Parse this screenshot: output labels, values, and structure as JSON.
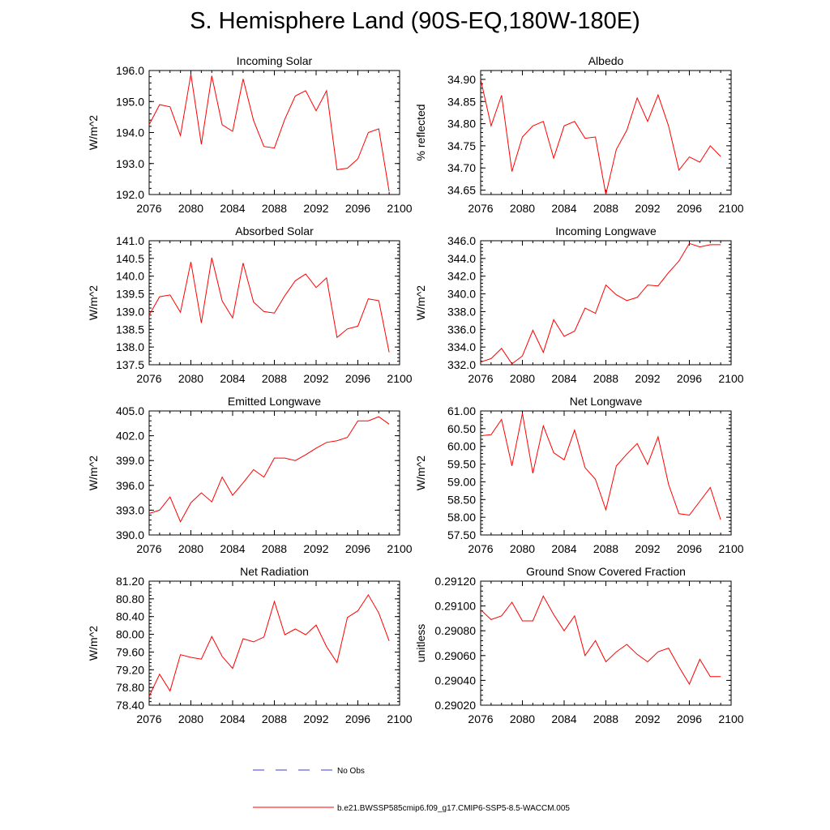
{
  "figure": {
    "title": "S. Hemisphere Land (90S-EQ,180W-180E)",
    "legend": [
      {
        "label": "No Obs",
        "color": "#3b3bd9",
        "style": "dashed"
      },
      {
        "label": "b.e21.BWSSP585cmip6.f09_g17.CMIP6-SSP5-8.5-WACCM.005",
        "color": "#ff0000",
        "style": "solid"
      }
    ],
    "colors": {
      "series": "#ff0000",
      "axis": "#000000",
      "obs": "#3b3bd9"
    }
  },
  "chart_data": [
    {
      "type": "line",
      "title": "Incoming Solar",
      "xlabel": "",
      "ylabel": "W/m^2",
      "xlim": [
        2076,
        2100
      ],
      "xticks": [
        2076,
        2080,
        2084,
        2088,
        2092,
        2096,
        2100
      ],
      "ylim": [
        192.0,
        196.0
      ],
      "yticks": [
        "192.0",
        "193.0",
        "194.0",
        "195.0",
        "196.0"
      ],
      "yminor": 0.2,
      "x": [
        2076,
        2077,
        2078,
        2079,
        2080,
        2081,
        2082,
        2083,
        2084,
        2085,
        2086,
        2087,
        2088,
        2089,
        2090,
        2091,
        2092,
        2093,
        2094,
        2095,
        2096,
        2097,
        2098,
        2099
      ],
      "values": [
        194.25,
        194.9,
        194.83,
        193.9,
        195.88,
        193.62,
        195.83,
        194.25,
        194.04,
        195.73,
        194.39,
        193.55,
        193.5,
        194.43,
        195.18,
        195.35,
        194.7,
        195.35,
        192.8,
        192.85,
        193.15,
        194.0,
        194.12,
        192.1
      ]
    },
    {
      "type": "line",
      "title": "Albedo",
      "xlabel": "",
      "ylabel": "% reflected",
      "xlim": [
        2076,
        2100
      ],
      "xticks": [
        2076,
        2080,
        2084,
        2088,
        2092,
        2096,
        2100
      ],
      "ylim": [
        34.64,
        34.92
      ],
      "yticks": [
        "34.65",
        "34.70",
        "34.75",
        "34.80",
        "34.85",
        "34.90"
      ],
      "yminor": 0.01,
      "x": [
        2076,
        2077,
        2078,
        2079,
        2080,
        2081,
        2082,
        2083,
        2084,
        2085,
        2086,
        2087,
        2088,
        2089,
        2090,
        2091,
        2092,
        2093,
        2094,
        2095,
        2096,
        2097,
        2098,
        2099
      ],
      "values": [
        34.9,
        34.795,
        34.864,
        34.692,
        34.77,
        34.795,
        34.805,
        34.722,
        34.795,
        34.805,
        34.767,
        34.77,
        34.64,
        34.742,
        34.785,
        34.858,
        34.805,
        34.865,
        34.795,
        34.695,
        34.725,
        34.713,
        34.75,
        34.726
      ]
    },
    {
      "type": "line",
      "title": "Absorbed Solar",
      "xlabel": "",
      "ylabel": "W/m^2",
      "xlim": [
        2076,
        2100
      ],
      "xticks": [
        2076,
        2080,
        2084,
        2088,
        2092,
        2096,
        2100
      ],
      "ylim": [
        137.5,
        141.0
      ],
      "yticks": [
        "137.5",
        "138.0",
        "138.5",
        "139.0",
        "139.5",
        "140.0",
        "140.5",
        "141.0"
      ],
      "yminor": 0.1,
      "x": [
        2076,
        2077,
        2078,
        2079,
        2080,
        2081,
        2082,
        2083,
        2084,
        2085,
        2086,
        2087,
        2088,
        2089,
        2090,
        2091,
        2092,
        2093,
        2094,
        2095,
        2096,
        2097,
        2098,
        2099
      ],
      "values": [
        138.9,
        139.42,
        139.47,
        138.98,
        140.4,
        138.68,
        140.52,
        139.3,
        138.82,
        140.37,
        139.27,
        139.0,
        138.96,
        139.45,
        139.87,
        140.06,
        139.68,
        139.95,
        138.27,
        138.51,
        138.59,
        139.36,
        139.31,
        137.85
      ]
    },
    {
      "type": "line",
      "title": "Incoming Longwave",
      "xlabel": "",
      "ylabel": "W/m^2",
      "xlim": [
        2076,
        2100
      ],
      "xticks": [
        2076,
        2080,
        2084,
        2088,
        2092,
        2096,
        2100
      ],
      "ylim": [
        332.0,
        346.0
      ],
      "yticks": [
        "332.0",
        "334.0",
        "336.0",
        "338.0",
        "340.0",
        "342.0",
        "344.0",
        "346.0"
      ],
      "yminor": 0.4,
      "x": [
        2076,
        2077,
        2078,
        2079,
        2080,
        2081,
        2082,
        2083,
        2084,
        2085,
        2086,
        2087,
        2088,
        2089,
        2090,
        2091,
        2092,
        2093,
        2094,
        2095,
        2096,
        2097,
        2098,
        2099
      ],
      "values": [
        332.3,
        332.7,
        333.85,
        332.1,
        333.0,
        335.9,
        333.4,
        337.1,
        335.2,
        335.8,
        338.4,
        337.8,
        341.0,
        339.9,
        339.25,
        339.6,
        341.0,
        340.9,
        342.4,
        343.7,
        345.7,
        345.3,
        345.55,
        345.55
      ]
    },
    {
      "type": "line",
      "title": "Emitted Longwave",
      "xlabel": "",
      "ylabel": "W/m^2",
      "xlim": [
        2076,
        2100
      ],
      "xticks": [
        2076,
        2080,
        2084,
        2088,
        2092,
        2096,
        2100
      ],
      "ylim": [
        390.0,
        405.0
      ],
      "yticks": [
        "390.0",
        "393.0",
        "396.0",
        "399.0",
        "402.0",
        "405.0"
      ],
      "yminor": 0.6,
      "x": [
        2076,
        2077,
        2078,
        2079,
        2080,
        2081,
        2082,
        2083,
        2084,
        2085,
        2086,
        2087,
        2088,
        2089,
        2090,
        2091,
        2092,
        2093,
        2094,
        2095,
        2096,
        2097,
        2098,
        2099
      ],
      "values": [
        392.6,
        393.0,
        394.6,
        391.6,
        393.9,
        395.1,
        394.0,
        397.0,
        394.8,
        396.3,
        397.9,
        397.0,
        399.3,
        399.3,
        399.0,
        399.7,
        400.5,
        401.2,
        401.4,
        401.8,
        403.8,
        403.8,
        404.3,
        403.4
      ]
    },
    {
      "type": "line",
      "title": "Net Longwave",
      "xlabel": "",
      "ylabel": "W/m^2",
      "xlim": [
        2076,
        2100
      ],
      "xticks": [
        2076,
        2080,
        2084,
        2088,
        2092,
        2096,
        2100
      ],
      "ylim": [
        57.5,
        61.0
      ],
      "yticks": [
        "57.50",
        "58.00",
        "58.50",
        "59.00",
        "59.50",
        "60.00",
        "60.50",
        "61.00"
      ],
      "yminor": 0.1,
      "x": [
        2076,
        2077,
        2078,
        2079,
        2080,
        2081,
        2082,
        2083,
        2084,
        2085,
        2086,
        2087,
        2088,
        2089,
        2090,
        2091,
        2092,
        2093,
        2094,
        2095,
        2096,
        2097,
        2098,
        2099
      ],
      "values": [
        60.3,
        60.33,
        60.76,
        59.45,
        60.93,
        59.24,
        60.58,
        59.82,
        59.62,
        60.46,
        59.4,
        59.07,
        58.21,
        59.45,
        59.78,
        60.08,
        59.49,
        60.27,
        58.93,
        58.1,
        58.06,
        58.45,
        58.84,
        57.93
      ]
    },
    {
      "type": "line",
      "title": "Net Radiation",
      "xlabel": "",
      "ylabel": "W/m^2",
      "xlim": [
        2076,
        2100
      ],
      "xticks": [
        2076,
        2080,
        2084,
        2088,
        2092,
        2096,
        2100
      ],
      "ylim": [
        78.4,
        81.2
      ],
      "yticks": [
        "78.40",
        "78.80",
        "79.20",
        "79.60",
        "80.00",
        "80.40",
        "80.80",
        "81.20"
      ],
      "yminor": 0.08,
      "x": [
        2076,
        2077,
        2078,
        2079,
        2080,
        2081,
        2082,
        2083,
        2084,
        2085,
        2086,
        2087,
        2088,
        2089,
        2090,
        2091,
        2092,
        2093,
        2094,
        2095,
        2096,
        2097,
        2098,
        2099
      ],
      "values": [
        78.6,
        79.1,
        78.72,
        79.54,
        79.48,
        79.44,
        79.95,
        79.5,
        79.23,
        79.9,
        79.83,
        79.94,
        80.74,
        79.99,
        80.12,
        79.99,
        80.21,
        79.72,
        79.36,
        80.38,
        80.53,
        80.89,
        80.48,
        79.85
      ]
    },
    {
      "type": "line",
      "title": "Ground Snow Covered Fraction",
      "xlabel": "",
      "ylabel": "unitless",
      "xlim": [
        2076,
        2100
      ],
      "xticks": [
        2076,
        2080,
        2084,
        2088,
        2092,
        2096,
        2100
      ],
      "ylim": [
        0.2902,
        0.2912
      ],
      "yticks": [
        "0.29020",
        "0.29040",
        "0.29060",
        "0.29080",
        "0.29100",
        "0.29120"
      ],
      "yminor": 4e-05,
      "x": [
        2076,
        2077,
        2078,
        2079,
        2080,
        2081,
        2082,
        2083,
        2084,
        2085,
        2086,
        2087,
        2088,
        2089,
        2090,
        2091,
        2092,
        2093,
        2094,
        2095,
        2096,
        2097,
        2098,
        2099
      ],
      "values": [
        0.29097,
        0.29089,
        0.29092,
        0.29103,
        0.29088,
        0.29088,
        0.29108,
        0.29093,
        0.2908,
        0.29092,
        0.2906,
        0.29072,
        0.29055,
        0.29063,
        0.29069,
        0.29061,
        0.29055,
        0.29063,
        0.29066,
        0.29051,
        0.29037,
        0.29057,
        0.29043,
        0.29043
      ]
    }
  ]
}
